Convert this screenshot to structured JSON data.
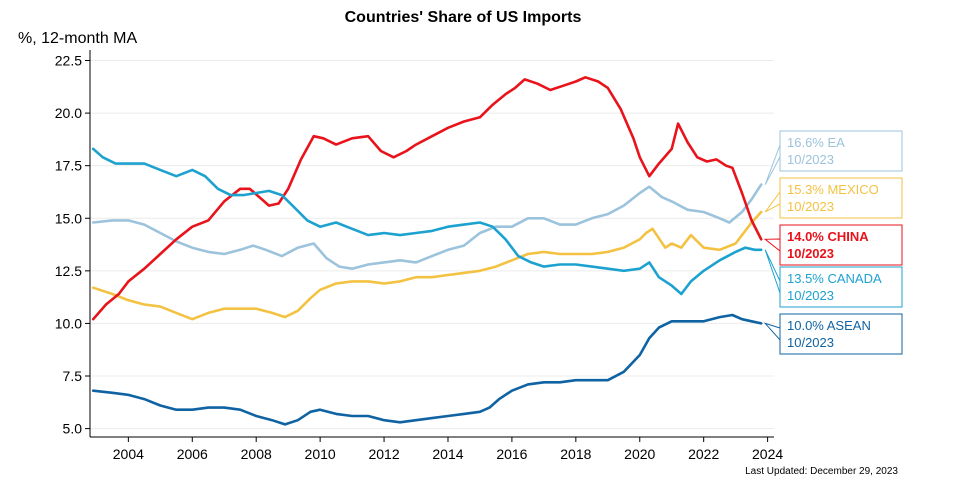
{
  "chart_data": {
    "type": "line",
    "title": "Countries' Share of US Imports",
    "ylabel": "%, 12-month MA",
    "xlabel": "",
    "xlim": [
      2002.8,
      2024.2
    ],
    "ylim": [
      4.6,
      23.0
    ],
    "yticks": [
      5.0,
      7.5,
      10.0,
      12.5,
      15.0,
      17.5,
      20.0,
      22.5
    ],
    "ytick_labels": [
      "5.0",
      "7.5",
      "10.0",
      "12.5",
      "15.0",
      "17.5",
      "20.0",
      "22.5"
    ],
    "xticks": [
      2004,
      2006,
      2008,
      2010,
      2012,
      2014,
      2016,
      2018,
      2020,
      2022,
      2024
    ],
    "xtick_labels": [
      "2004",
      "2006",
      "2008",
      "2010",
      "2012",
      "2014",
      "2016",
      "2018",
      "2020",
      "2022",
      "2024"
    ],
    "grid": "horizontal",
    "last_updated": "Last Updated: December 29, 2023",
    "series": [
      {
        "name": "EA",
        "color": "#9cc3dc",
        "callout": [
          "16.6% EA",
          "10/2023"
        ],
        "callout_bold": false,
        "x": [
          2002.9,
          2003.5,
          2004.0,
          2004.5,
          2005.0,
          2005.5,
          2006.0,
          2006.5,
          2007.0,
          2007.5,
          2007.9,
          2008.3,
          2008.8,
          2009.3,
          2009.8,
          2010.2,
          2010.6,
          2011.0,
          2011.5,
          2012.0,
          2012.5,
          2013.0,
          2013.5,
          2014.0,
          2014.5,
          2015.0,
          2015.5,
          2016.0,
          2016.5,
          2017.0,
          2017.5,
          2018.0,
          2018.5,
          2019.0,
          2019.5,
          2020.0,
          2020.3,
          2020.7,
          2021.0,
          2021.5,
          2022.0,
          2022.5,
          2022.8,
          2023.2,
          2023.5,
          2023.8
        ],
        "values": [
          14.8,
          14.9,
          14.9,
          14.7,
          14.3,
          13.9,
          13.6,
          13.4,
          13.3,
          13.5,
          13.7,
          13.5,
          13.2,
          13.6,
          13.8,
          13.1,
          12.7,
          12.6,
          12.8,
          12.9,
          13.0,
          12.9,
          13.2,
          13.5,
          13.7,
          14.3,
          14.6,
          14.6,
          15.0,
          15.0,
          14.7,
          14.7,
          15.0,
          15.2,
          15.6,
          16.2,
          16.5,
          16.0,
          15.8,
          15.4,
          15.3,
          15.0,
          14.8,
          15.3,
          15.9,
          16.6
        ]
      },
      {
        "name": "MEXICO",
        "color": "#f4c242",
        "callout": [
          "15.3% MEXICO",
          "10/2023"
        ],
        "callout_bold": false,
        "x": [
          2002.9,
          2003.5,
          2004.0,
          2004.5,
          2005.0,
          2005.5,
          2006.0,
          2006.5,
          2007.0,
          2007.5,
          2008.0,
          2008.5,
          2008.9,
          2009.3,
          2009.7,
          2010.0,
          2010.5,
          2011.0,
          2011.5,
          2012.0,
          2012.5,
          2013.0,
          2013.5,
          2014.0,
          2014.5,
          2015.0,
          2015.5,
          2016.0,
          2016.5,
          2017.0,
          2017.5,
          2018.0,
          2018.5,
          2019.0,
          2019.5,
          2020.0,
          2020.2,
          2020.4,
          2020.8,
          2021.0,
          2021.3,
          2021.6,
          2022.0,
          2022.5,
          2023.0,
          2023.5,
          2023.8
        ],
        "values": [
          11.7,
          11.4,
          11.1,
          10.9,
          10.8,
          10.5,
          10.2,
          10.5,
          10.7,
          10.7,
          10.7,
          10.5,
          10.3,
          10.6,
          11.2,
          11.6,
          11.9,
          12.0,
          12.0,
          11.9,
          12.0,
          12.2,
          12.2,
          12.3,
          12.4,
          12.5,
          12.7,
          13.0,
          13.3,
          13.4,
          13.3,
          13.3,
          13.3,
          13.4,
          13.6,
          14.0,
          14.3,
          14.5,
          13.6,
          13.8,
          13.6,
          14.2,
          13.6,
          13.5,
          13.8,
          14.8,
          15.3
        ]
      },
      {
        "name": "CHINA",
        "color": "#e8131b",
        "callout": [
          "14.0% CHINA",
          "10/2023"
        ],
        "callout_bold": true,
        "x": [
          2002.9,
          2003.3,
          2003.7,
          2004.0,
          2004.5,
          2005.0,
          2005.5,
          2006.0,
          2006.5,
          2007.0,
          2007.5,
          2007.8,
          2008.1,
          2008.4,
          2008.7,
          2009.0,
          2009.4,
          2009.8,
          2010.1,
          2010.5,
          2011.0,
          2011.5,
          2011.9,
          2012.3,
          2012.7,
          2013.0,
          2013.5,
          2014.0,
          2014.5,
          2015.0,
          2015.4,
          2015.8,
          2016.1,
          2016.4,
          2016.8,
          2017.2,
          2017.6,
          2018.0,
          2018.3,
          2018.7,
          2019.0,
          2019.4,
          2019.8,
          2020.0,
          2020.3,
          2020.6,
          2021.0,
          2021.2,
          2021.5,
          2021.8,
          2022.1,
          2022.4,
          2022.7,
          2022.9,
          2023.2,
          2023.5,
          2023.8
        ],
        "values": [
          10.2,
          10.9,
          11.4,
          12.0,
          12.6,
          13.3,
          14.0,
          14.6,
          14.9,
          15.8,
          16.4,
          16.4,
          16.0,
          15.6,
          15.7,
          16.4,
          17.8,
          18.9,
          18.8,
          18.5,
          18.8,
          18.9,
          18.2,
          17.9,
          18.2,
          18.5,
          18.9,
          19.3,
          19.6,
          19.8,
          20.4,
          20.9,
          21.2,
          21.6,
          21.4,
          21.1,
          21.3,
          21.5,
          21.7,
          21.5,
          21.2,
          20.2,
          18.8,
          17.9,
          17.0,
          17.6,
          18.3,
          19.5,
          18.6,
          17.9,
          17.7,
          17.8,
          17.5,
          17.4,
          16.2,
          14.9,
          14.0
        ]
      },
      {
        "name": "CANADA",
        "color": "#1da2d0",
        "callout": [
          "13.5% CANADA",
          "10/2023"
        ],
        "callout_bold": false,
        "x": [
          2002.9,
          2003.2,
          2003.6,
          2004.0,
          2004.5,
          2005.0,
          2005.5,
          2006.0,
          2006.4,
          2006.8,
          2007.2,
          2007.6,
          2008.0,
          2008.4,
          2008.8,
          2009.2,
          2009.6,
          2010.0,
          2010.5,
          2011.0,
          2011.5,
          2012.0,
          2012.5,
          2013.0,
          2013.5,
          2014.0,
          2014.5,
          2015.0,
          2015.4,
          2015.8,
          2016.2,
          2016.6,
          2017.0,
          2017.5,
          2018.0,
          2018.5,
          2019.0,
          2019.5,
          2020.0,
          2020.3,
          2020.6,
          2021.0,
          2021.3,
          2021.6,
          2022.0,
          2022.5,
          2023.0,
          2023.3,
          2023.6,
          2023.8
        ],
        "values": [
          18.3,
          17.9,
          17.6,
          17.6,
          17.6,
          17.3,
          17.0,
          17.3,
          17.0,
          16.4,
          16.1,
          16.1,
          16.2,
          16.3,
          16.1,
          15.5,
          14.9,
          14.6,
          14.8,
          14.5,
          14.2,
          14.3,
          14.2,
          14.3,
          14.4,
          14.6,
          14.7,
          14.8,
          14.6,
          14.0,
          13.2,
          12.9,
          12.7,
          12.8,
          12.8,
          12.7,
          12.6,
          12.5,
          12.6,
          12.9,
          12.2,
          11.8,
          11.4,
          12.0,
          12.5,
          13.0,
          13.4,
          13.6,
          13.5,
          13.5
        ]
      },
      {
        "name": "ASEAN",
        "color": "#0f63a3",
        "callout": [
          "10.0% ASEAN",
          "10/2023"
        ],
        "callout_bold": false,
        "x": [
          2002.9,
          2003.5,
          2004.0,
          2004.5,
          2005.0,
          2005.5,
          2006.0,
          2006.5,
          2007.0,
          2007.5,
          2008.0,
          2008.5,
          2008.9,
          2009.3,
          2009.7,
          2010.0,
          2010.5,
          2011.0,
          2011.5,
          2012.0,
          2012.5,
          2013.0,
          2013.5,
          2014.0,
          2014.5,
          2015.0,
          2015.3,
          2015.6,
          2016.0,
          2016.5,
          2017.0,
          2017.5,
          2018.0,
          2018.5,
          2019.0,
          2019.5,
          2020.0,
          2020.3,
          2020.6,
          2021.0,
          2021.5,
          2022.0,
          2022.5,
          2022.9,
          2023.2,
          2023.5,
          2023.8
        ],
        "values": [
          6.8,
          6.7,
          6.6,
          6.4,
          6.1,
          5.9,
          5.9,
          6.0,
          6.0,
          5.9,
          5.6,
          5.4,
          5.2,
          5.4,
          5.8,
          5.9,
          5.7,
          5.6,
          5.6,
          5.4,
          5.3,
          5.4,
          5.5,
          5.6,
          5.7,
          5.8,
          6.0,
          6.4,
          6.8,
          7.1,
          7.2,
          7.2,
          7.3,
          7.3,
          7.3,
          7.7,
          8.5,
          9.3,
          9.8,
          10.1,
          10.1,
          10.1,
          10.3,
          10.4,
          10.2,
          10.1,
          10.0
        ]
      }
    ]
  }
}
